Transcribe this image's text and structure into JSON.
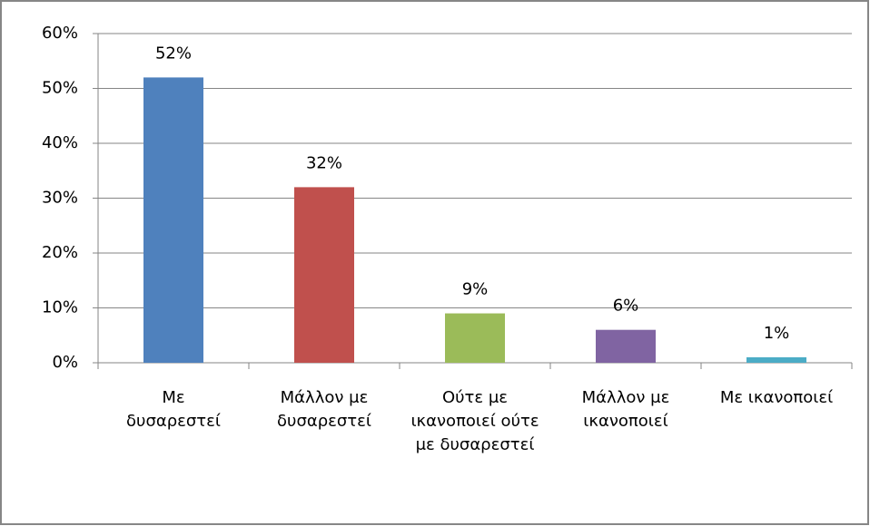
{
  "chart_data": {
    "type": "bar",
    "categories": [
      "Με δυσαρεστεί",
      "Μάλλον με δυσαρεστεί",
      "Ούτε με ικανοποιεί ούτε με δυσαρεστεί",
      "Μάλλον με ικανοποιεί",
      "Με ικανοποιεί"
    ],
    "values": [
      52,
      32,
      9,
      6,
      1
    ],
    "value_labels": [
      "52%",
      "32%",
      "9%",
      "6%",
      "1%"
    ],
    "colors": [
      "#4f81bd",
      "#c0504d",
      "#9bbb59",
      "#8064a2",
      "#4bacc6"
    ],
    "ylim": [
      0,
      60
    ],
    "yticks": [
      {
        "value": 0,
        "label": "0%"
      },
      {
        "value": 10,
        "label": "10%"
      },
      {
        "value": 20,
        "label": "20%"
      },
      {
        "value": 30,
        "label": "30%"
      },
      {
        "value": 40,
        "label": "40%"
      },
      {
        "value": 50,
        "label": "50%"
      },
      {
        "value": 60,
        "label": "60%"
      }
    ],
    "grid": true
  }
}
